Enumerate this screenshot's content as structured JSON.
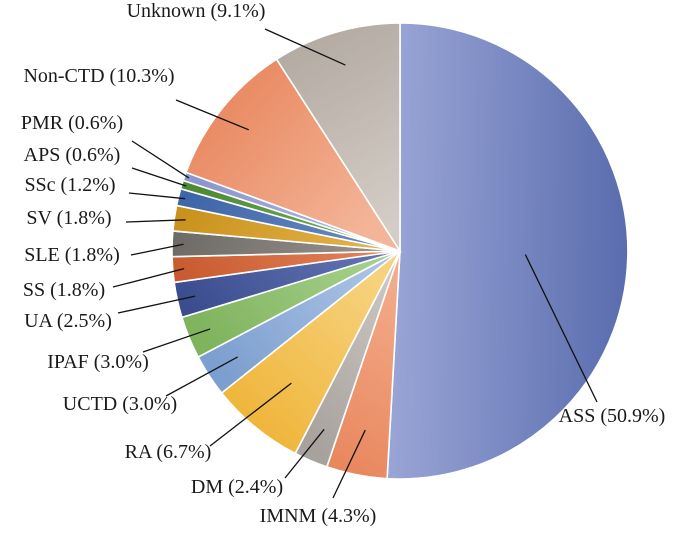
{
  "chart_data": {
    "type": "pie",
    "title": "",
    "slices": [
      {
        "label": "ASS (50.9%)",
        "value": 50.9,
        "color_from": "#5a6cae",
        "color_to": "#9aa6d6"
      },
      {
        "label": "IMNM (4.3%)",
        "value": 4.3,
        "color_from": "#e9875e",
        "color_to": "#f3ad8c"
      },
      {
        "label": "DM (2.4%)",
        "value": 2.4,
        "color_from": "#a7a29d",
        "color_to": "#cbc6c1"
      },
      {
        "label": "RA (6.7%)",
        "value": 6.7,
        "color_from": "#efb53a",
        "color_to": "#f6d27d"
      },
      {
        "label": "UCTD (3.0%)",
        "value": 3.0,
        "color_from": "#7d9fcf",
        "color_to": "#a9c2e4"
      },
      {
        "label": "IPAF (3.0%)",
        "value": 3.0,
        "color_from": "#7fb35c",
        "color_to": "#a6cf8b"
      },
      {
        "label": "UA (2.5%)",
        "value": 2.5,
        "color_from": "#3b4d8f",
        "color_to": "#6374b3"
      },
      {
        "label": "SS (1.8%)",
        "value": 1.8,
        "color_from": "#c85a2e",
        "color_to": "#e4845c"
      },
      {
        "label": "SLE (1.8%)",
        "value": 1.8,
        "color_from": "#6e6a66",
        "color_to": "#9a9590"
      },
      {
        "label": "SV (1.8%)",
        "value": 1.8,
        "color_from": "#c9921c",
        "color_to": "#e4b54c"
      },
      {
        "label": "SSc (1.2%)",
        "value": 1.2,
        "color_from": "#3f66a8",
        "color_to": "#6b8cc6"
      },
      {
        "label": "APS (0.6%)",
        "value": 0.6,
        "color_from": "#4f8a33",
        "color_to": "#78b05a"
      },
      {
        "label": "PMR (0.6%)",
        "value": 0.6,
        "color_from": "#8b97cf",
        "color_to": "#b0bae2"
      },
      {
        "label": "Non-CTD (10.3%)",
        "value": 10.3,
        "color_from": "#e9875e",
        "color_to": "#f3b497"
      },
      {
        "label": "Unknown (9.1%)",
        "value": 9.1,
        "color_from": "#b3aaa2",
        "color_to": "#d4cdc6"
      }
    ]
  }
}
